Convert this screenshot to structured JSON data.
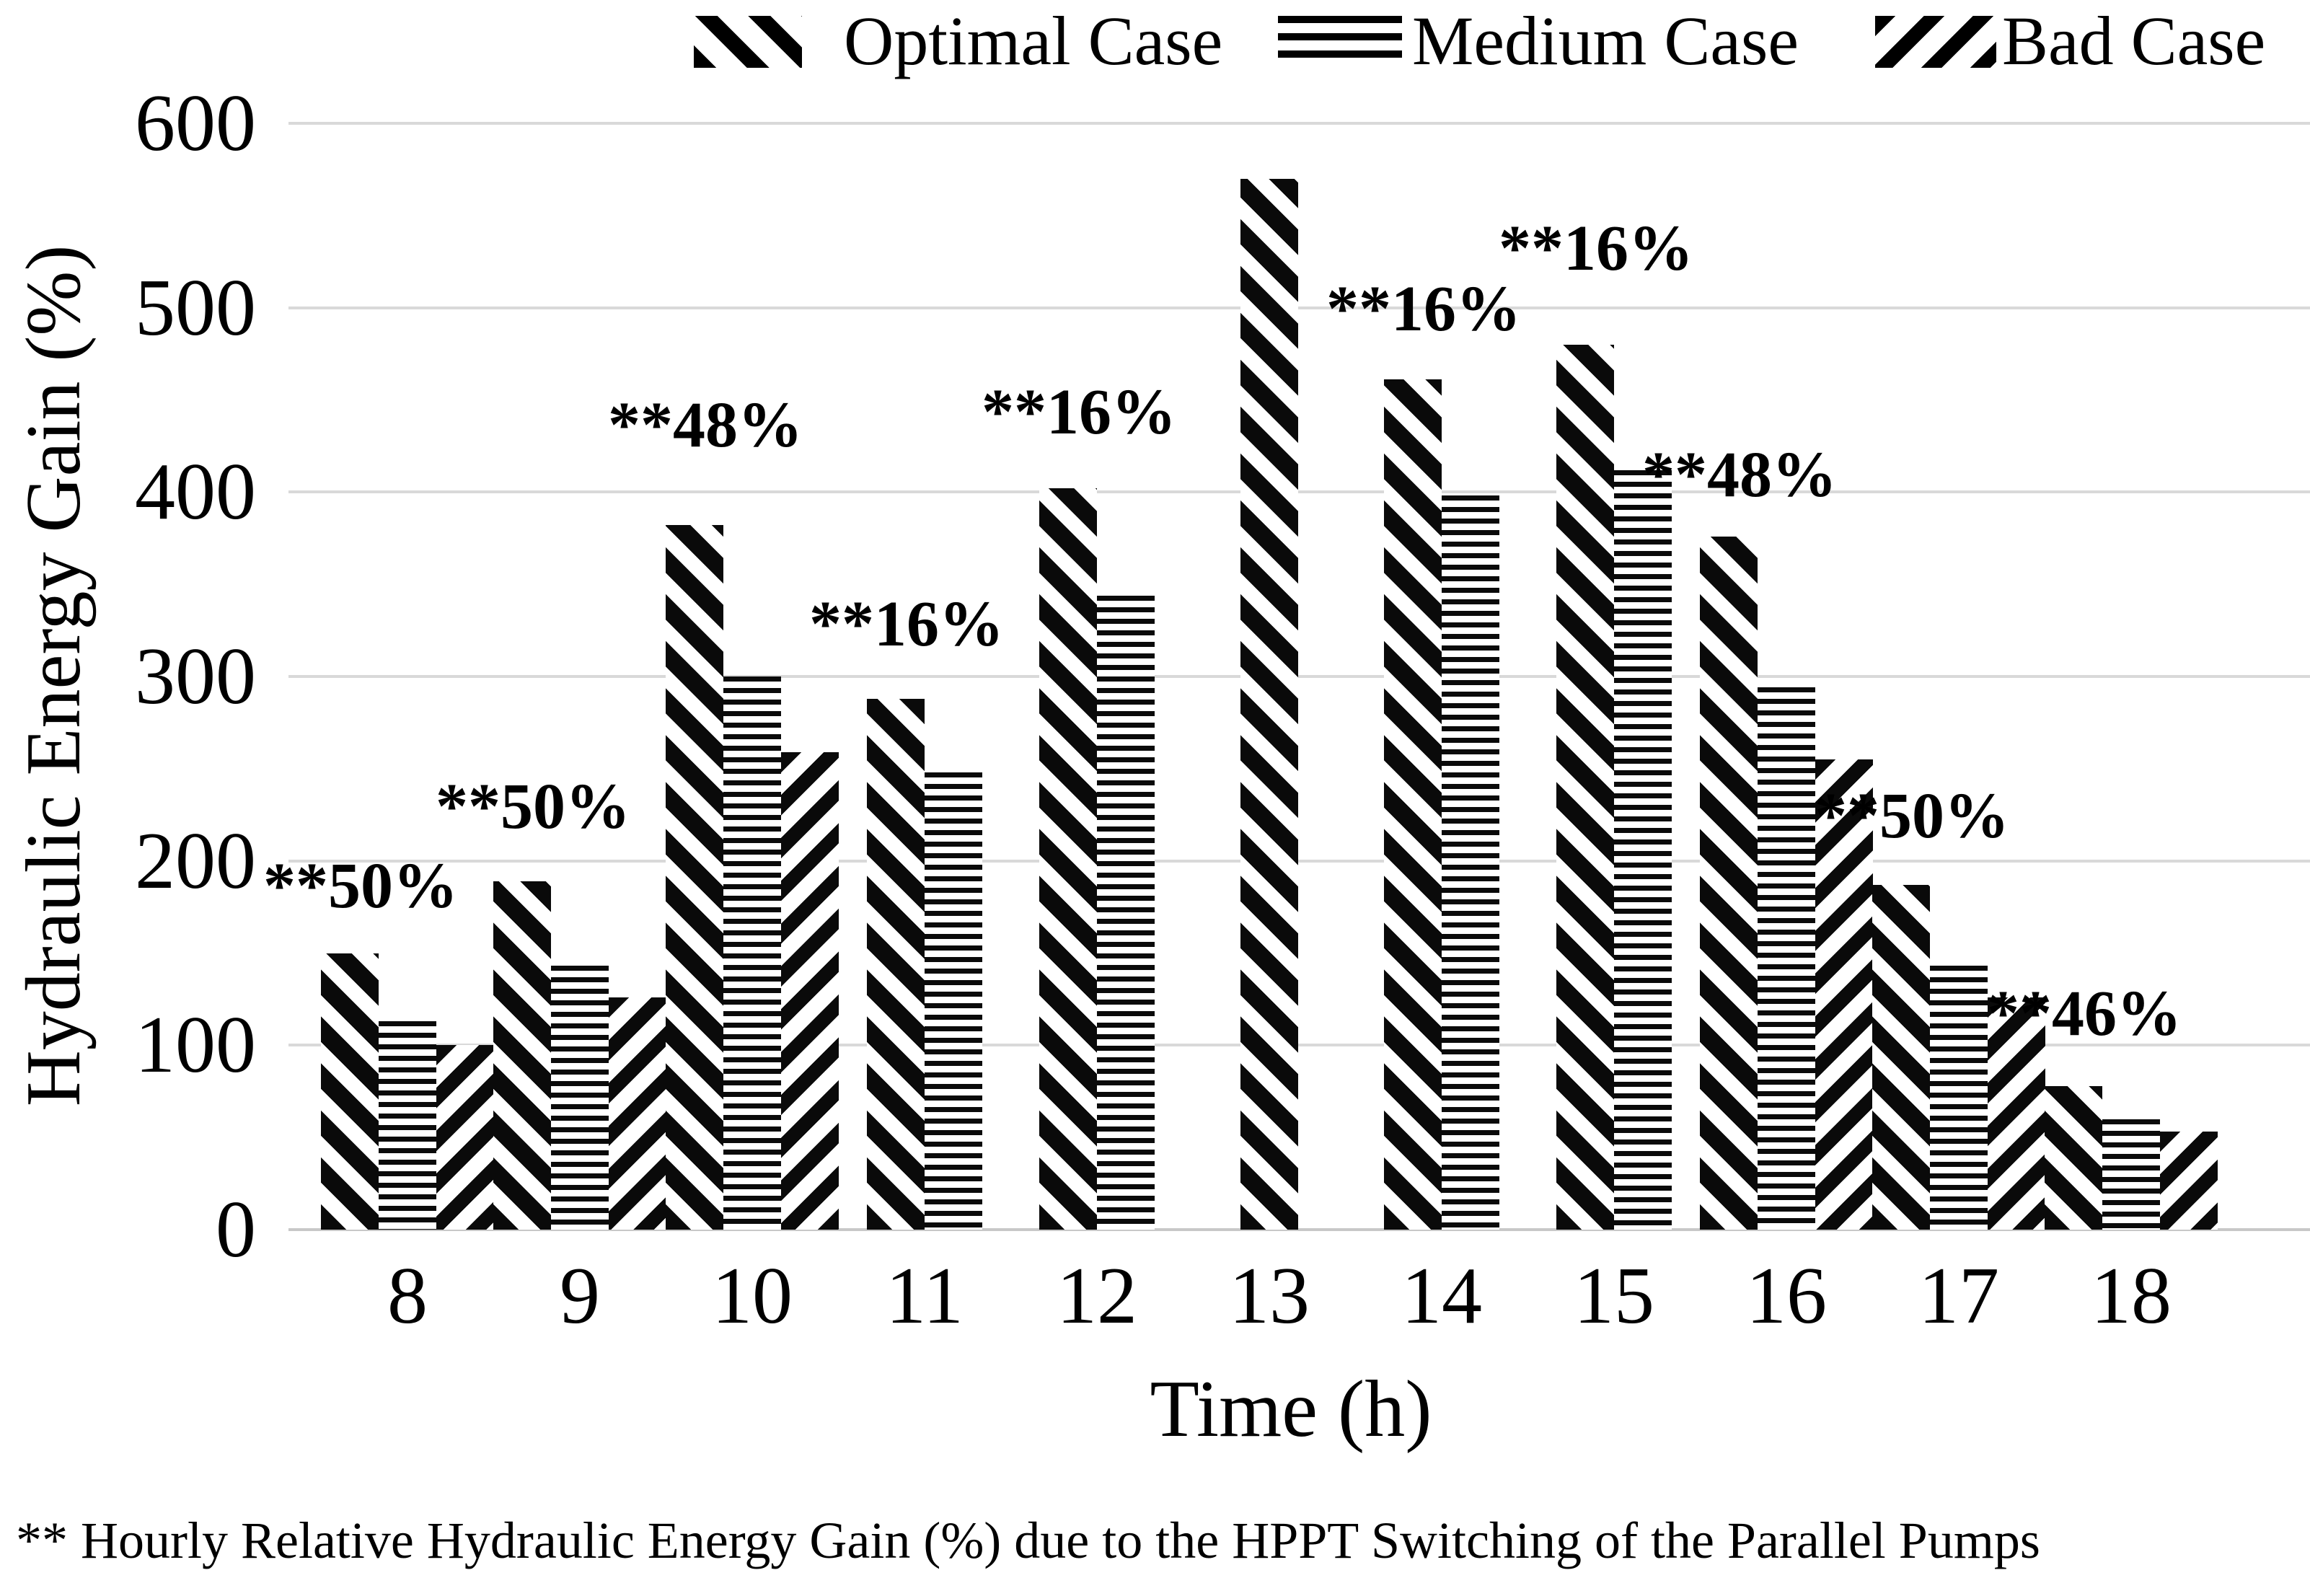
{
  "legend": {
    "items": [
      {
        "label": "Optimal Case",
        "pattern": "diagonal-down-hatch"
      },
      {
        "label": "Medium Case",
        "pattern": "horizontal-lines"
      },
      {
        "label": "Bad Case",
        "pattern": "diagonal-up-hatch"
      }
    ],
    "position": "top"
  },
  "y_axis": {
    "title": "Hydraulic Energy Gain (%)"
  },
  "x_axis": {
    "title": "Time (h)"
  },
  "footnote": "** Hourly Relative Hydraulic Energy Gain (%) due to the HPPT Switching of the Parallel Pumps",
  "colors": {
    "bars": "#000000",
    "gridline": "#d9d9d9",
    "text": "#000000",
    "background": "#ffffff"
  },
  "chart_data": {
    "type": "bar",
    "title": "",
    "xlabel": "Time (h)",
    "ylabel": "Hydraulic Energy Gain (%)",
    "ylim": [
      0,
      600
    ],
    "yticks": [
      0,
      100,
      200,
      300,
      400,
      500,
      600
    ],
    "grid": true,
    "legend_position": "top",
    "categories": [
      "8",
      "9",
      "10",
      "11",
      "12",
      "13",
      "14",
      "15",
      "16",
      "17",
      "18"
    ],
    "series": [
      {
        "name": "Optimal Case",
        "values": [
          150,
          189,
          382,
          288,
          402,
          570,
          461,
          480,
          376,
          187,
          78
        ]
      },
      {
        "name": "Medium Case",
        "values": [
          113,
          143,
          300,
          248,
          344,
          null,
          398,
          412,
          294,
          143,
          60
        ]
      },
      {
        "name": "Bad Case",
        "values": [
          100,
          126,
          259,
          null,
          null,
          null,
          null,
          null,
          255,
          126,
          53
        ]
      }
    ],
    "annotations": [
      {
        "category": "8",
        "text": "**50%",
        "y": 183
      },
      {
        "category": "9",
        "text": "**50%",
        "y": 226
      },
      {
        "category": "10",
        "text": "**48%",
        "y": 433
      },
      {
        "category": "11",
        "text": "**16%",
        "y": 325
      },
      {
        "category": "12",
        "text": "**16%",
        "y": 440
      },
      {
        "category": "13",
        "text": "",
        "y": null
      },
      {
        "category": "14",
        "text": "**16%",
        "y": 496
      },
      {
        "category": "15",
        "text": "**16%",
        "y": 529
      },
      {
        "category": "16",
        "text": "**48%",
        "y": 406
      },
      {
        "category": "17",
        "text": "**50%",
        "y": 221
      },
      {
        "category": "18",
        "text": "**46%",
        "y": 114
      }
    ]
  }
}
